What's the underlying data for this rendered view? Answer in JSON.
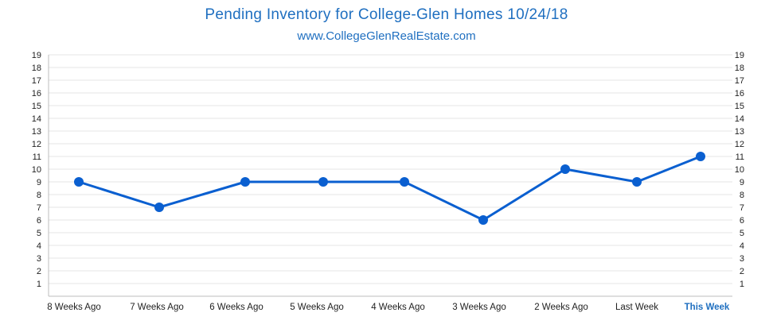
{
  "chart_data": {
    "type": "line",
    "title": "Pending Inventory for College-Glen Homes 10/24/18",
    "subtitle": "www.CollegeGlenRealEstate.com",
    "categories": [
      "8 Weeks Ago",
      "7 Weeks Ago",
      "6 Weeks Ago",
      "5 Weeks Ago",
      "4 Weeks Ago",
      "3 Weeks Ago",
      "2 Weeks Ago",
      "Last Week",
      "This Week"
    ],
    "highlight_category": "This Week",
    "values": [
      9,
      7,
      9,
      9,
      9,
      6,
      10,
      9,
      11
    ],
    "ylim": [
      0,
      19
    ],
    "yticks": [
      1,
      2,
      3,
      4,
      5,
      6,
      7,
      8,
      9,
      10,
      11,
      12,
      13,
      14,
      15,
      16,
      17,
      18,
      19
    ],
    "dual_y_axis": true,
    "grid": true,
    "colors": {
      "line": "#0a5fd0",
      "text_accent": "#1f6fc0",
      "grid": "#e6e6e6"
    }
  }
}
